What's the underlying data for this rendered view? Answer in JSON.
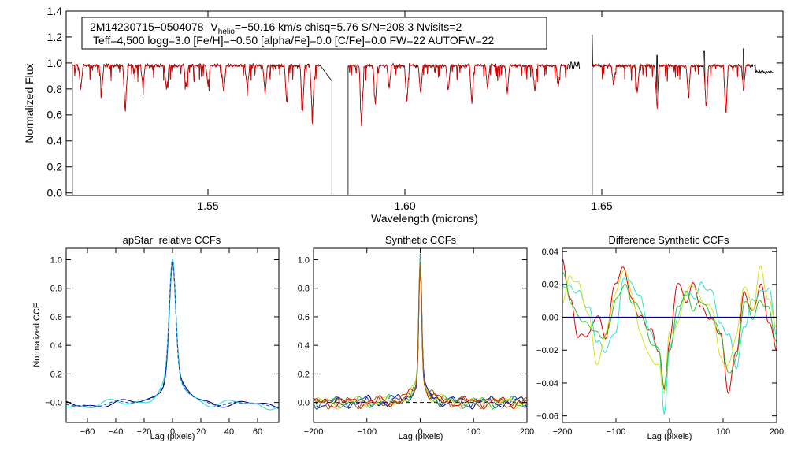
{
  "colors": {
    "observed": "#000000",
    "model": "#e00000",
    "ccf_navy": "#000080",
    "ccf_blue": "#1050c8",
    "ccf_cyan": "#30e0d0",
    "ccf_green": "#30c030",
    "ccf_yellow": "#d8e020",
    "ccf_red": "#e00000",
    "ccf_brown": "#a06010",
    "dashed": "#000000"
  },
  "annotation": {
    "line1_star": "2M14230715−0504078",
    "line1_v": "V",
    "line1_v_sub": "helio",
    "line1_rest": "=−50.16 km/s  chisq=5.76  S/N=208.3  Nvisits=2",
    "line2": "Teff=4,500 logg=3.0 [Fe/H]=−0.50 [alpha/Fe]=0.0 [C/Fe]=0.0 FW=22 AUTOFW=22"
  },
  "chart_data": [
    {
      "type": "line",
      "title": "",
      "xlabel": "Wavelength (microns)",
      "ylabel": "Normalized Flux",
      "xlim": [
        1.514,
        1.696
      ],
      "ylim": [
        -0.02,
        1.4
      ],
      "x_ticks": [
        1.55,
        1.6,
        1.65
      ],
      "x_tick_labels": [
        "1.55",
        "1.60",
        "1.65"
      ],
      "y_ticks": [
        0.0,
        0.2,
        0.4,
        0.6,
        0.8,
        1.0,
        1.2,
        1.4
      ],
      "y_tick_labels": [
        "0.0",
        "0.2",
        "0.4",
        "0.6",
        "0.8",
        "1.0",
        "1.2",
        "1.4"
      ],
      "detector_chips": [
        [
          1.5155,
          1.5815
        ],
        [
          1.5855,
          1.6445
        ],
        [
          1.6475,
          1.6935
        ]
      ],
      "continuum": 0.98,
      "strong_lines": [
        {
          "x": 1.5177,
          "depth": 0.18
        },
        {
          "x": 1.523,
          "depth": 0.2
        },
        {
          "x": 1.529,
          "depth": 0.37
        },
        {
          "x": 1.5335,
          "depth": 0.16
        },
        {
          "x": 1.5395,
          "depth": 0.2
        },
        {
          "x": 1.5445,
          "depth": 0.18
        },
        {
          "x": 1.55,
          "depth": 0.15
        },
        {
          "x": 1.554,
          "depth": 0.22
        },
        {
          "x": 1.56,
          "depth": 0.18
        },
        {
          "x": 1.5645,
          "depth": 0.22
        },
        {
          "x": 1.57,
          "depth": 0.3
        },
        {
          "x": 1.574,
          "depth": 0.38
        },
        {
          "x": 1.5765,
          "depth": 0.42
        },
        {
          "x": 1.589,
          "depth": 0.48
        },
        {
          "x": 1.5925,
          "depth": 0.3
        },
        {
          "x": 1.596,
          "depth": 0.18
        },
        {
          "x": 1.6005,
          "depth": 0.28
        },
        {
          "x": 1.604,
          "depth": 0.22
        },
        {
          "x": 1.611,
          "depth": 0.2
        },
        {
          "x": 1.617,
          "depth": 0.3
        },
        {
          "x": 1.621,
          "depth": 0.18
        },
        {
          "x": 1.626,
          "depth": 0.22
        },
        {
          "x": 1.633,
          "depth": 0.2
        },
        {
          "x": 1.639,
          "depth": 0.15
        },
        {
          "x": 1.653,
          "depth": 0.16
        },
        {
          "x": 1.659,
          "depth": 0.22
        },
        {
          "x": 1.664,
          "depth": 0.3
        },
        {
          "x": 1.672,
          "depth": 0.25
        },
        {
          "x": 1.6765,
          "depth": 0.33
        },
        {
          "x": 1.6815,
          "depth": 0.4
        },
        {
          "x": 1.686,
          "depth": 0.18
        },
        {
          "x": 1.6905,
          "depth": 0.16
        }
      ],
      "emission_spikes": [
        {
          "x": 1.6475,
          "height": 1.22
        },
        {
          "x": 1.664,
          "height": 1.06
        },
        {
          "x": 1.676,
          "height": 1.09
        },
        {
          "x": 1.686,
          "height": 1.11
        }
      ],
      "series": [
        {
          "name": "observed spectrum",
          "color": "#000000"
        },
        {
          "name": "best-fit model",
          "color": "#e00000"
        }
      ]
    },
    {
      "type": "line",
      "title": "apStar−relative CCFs",
      "xlabel": "Lag (pixels)",
      "ylabel": "Normalized CCF",
      "xlim": [
        -75,
        75
      ],
      "ylim": [
        -0.14,
        1.08
      ],
      "x_ticks": [
        -60,
        -40,
        -20,
        0,
        20,
        40,
        60
      ],
      "x_tick_labels": [
        "−60",
        "−40",
        "−20",
        "0",
        "20",
        "40",
        "60"
      ],
      "y_ticks": [
        0.0,
        0.2,
        0.4,
        0.6,
        0.8,
        1.0
      ],
      "y_tick_labels": [
        "−0.0",
        "0.2",
        "0.4",
        "0.6",
        "0.8",
        "1.0"
      ],
      "peak": {
        "x": 0,
        "y": 1.0
      },
      "baseline": -0.05,
      "series": [
        {
          "name": "visit 1",
          "color": "#000080"
        },
        {
          "name": "visit 2",
          "color": "#30e0d0"
        },
        {
          "name": "combined (dashed)",
          "color": "#1050c8"
        }
      ]
    },
    {
      "type": "line",
      "title": "Synthetic CCFs",
      "xlabel": "Lag (pixels)",
      "ylabel": "",
      "xlim": [
        -200,
        200
      ],
      "ylim": [
        -0.14,
        1.08
      ],
      "x_ticks": [
        -200,
        -100,
        0,
        100,
        200
      ],
      "x_tick_labels": [
        "−200",
        "−100",
        "0",
        "100",
        "200"
      ],
      "y_ticks": [
        0.0,
        0.2,
        0.4,
        0.6,
        0.8,
        1.0
      ],
      "y_tick_labels": [
        "0.0",
        "0.2",
        "0.4",
        "0.6",
        "0.8",
        "1.0"
      ],
      "peak": {
        "x": 0,
        "y": 1.0
      },
      "zero_line": {
        "y": 0.0,
        "style": "dashed"
      },
      "series": [
        {
          "name": "ccf 1",
          "color": "#000080"
        },
        {
          "name": "ccf 2",
          "color": "#1050c8"
        },
        {
          "name": "ccf 3",
          "color": "#30c030"
        },
        {
          "name": "ccf 4",
          "color": "#d8e020"
        },
        {
          "name": "ccf 5",
          "color": "#e00000"
        },
        {
          "name": "ccf 6",
          "color": "#a06010"
        }
      ]
    },
    {
      "type": "line",
      "title": "Difference Synthetic CCFs",
      "xlabel": "Lag (pixels)",
      "ylabel": "",
      "xlim": [
        -200,
        200
      ],
      "ylim": [
        -0.064,
        0.042
      ],
      "x_ticks": [
        -200,
        -100,
        0,
        100,
        200
      ],
      "x_tick_labels": [
        "−200",
        "−100",
        "0",
        "100",
        "200"
      ],
      "y_ticks": [
        -0.06,
        -0.04,
        -0.02,
        0.0,
        0.02,
        0.04
      ],
      "y_tick_labels": [
        "−0.06",
        "−0.04",
        "−0.02",
        "0.00",
        "0.02",
        "0.04"
      ],
      "minimum": {
        "x": -10,
        "y": -0.058
      },
      "series": [
        {
          "name": "red",
          "color": "#e00000",
          "knots": [
            [
              -200,
              0.035
            ],
            [
              -185,
              0.01
            ],
            [
              -170,
              -0.012
            ],
            [
              -150,
              -0.01
            ],
            [
              -135,
              0.002
            ],
            [
              -120,
              -0.012
            ],
            [
              -100,
              0.022
            ],
            [
              -85,
              0.03
            ],
            [
              -70,
              0.01
            ],
            [
              -55,
              0.0
            ],
            [
              -35,
              -0.008
            ],
            [
              -20,
              -0.02
            ],
            [
              -10,
              -0.044
            ],
            [
              0,
              -0.015
            ],
            [
              15,
              0.022
            ],
            [
              30,
              0.01
            ],
            [
              45,
              0.02
            ],
            [
              60,
              0.005
            ],
            [
              80,
              -0.002
            ],
            [
              95,
              -0.01
            ],
            [
              110,
              -0.045
            ],
            [
              125,
              -0.02
            ],
            [
              140,
              0.015
            ],
            [
              155,
              0.003
            ],
            [
              170,
              0.02
            ],
            [
              185,
              -0.002
            ],
            [
              200,
              -0.02
            ]
          ]
        },
        {
          "name": "cyan",
          "color": "#30e0d0",
          "knots": [
            [
              -200,
              0.02
            ],
            [
              -185,
              0.018
            ],
            [
              -170,
              0.015
            ],
            [
              -150,
              0.005
            ],
            [
              -135,
              -0.015
            ],
            [
              -120,
              -0.02
            ],
            [
              -100,
              -0.008
            ],
            [
              -85,
              0.025
            ],
            [
              -70,
              0.02
            ],
            [
              -55,
              0.012
            ],
            [
              -35,
              -0.01
            ],
            [
              -20,
              -0.02
            ],
            [
              -10,
              -0.058
            ],
            [
              0,
              -0.02
            ],
            [
              15,
              0.0
            ],
            [
              30,
              0.015
            ],
            [
              45,
              0.012
            ],
            [
              60,
              0.02
            ],
            [
              80,
              0.015
            ],
            [
              95,
              -0.005
            ],
            [
              110,
              -0.01
            ],
            [
              125,
              -0.03
            ],
            [
              140,
              -0.005
            ],
            [
              155,
              0.01
            ],
            [
              170,
              0.015
            ],
            [
              185,
              0.018
            ],
            [
              200,
              -0.01
            ]
          ]
        },
        {
          "name": "yellow",
          "color": "#d8e020",
          "knots": [
            [
              -200,
              0.01
            ],
            [
              -185,
              0.025
            ],
            [
              -170,
              0.02
            ],
            [
              -150,
              0.0
            ],
            [
              -135,
              -0.03
            ],
            [
              -120,
              -0.01
            ],
            [
              -100,
              0.015
            ],
            [
              -85,
              0.03
            ],
            [
              -70,
              0.015
            ],
            [
              -55,
              -0.01
            ],
            [
              -35,
              -0.025
            ],
            [
              -20,
              -0.03
            ],
            [
              -10,
              -0.045
            ],
            [
              0,
              -0.01
            ],
            [
              15,
              -0.005
            ],
            [
              30,
              0.015
            ],
            [
              45,
              0.02
            ],
            [
              60,
              0.01
            ],
            [
              80,
              0.005
            ],
            [
              95,
              -0.025
            ],
            [
              110,
              -0.03
            ],
            [
              125,
              -0.01
            ],
            [
              140,
              0.02
            ],
            [
              155,
              0.005
            ],
            [
              170,
              0.03
            ],
            [
              185,
              0.01
            ],
            [
              200,
              -0.005
            ]
          ]
        },
        {
          "name": "green",
          "color": "#30c030",
          "knots": [
            [
              -200,
              0.028
            ],
            [
              -185,
              0.01
            ],
            [
              -170,
              0.0
            ],
            [
              -150,
              -0.005
            ],
            [
              -135,
              -0.01
            ],
            [
              -120,
              -0.012
            ],
            [
              -100,
              0.01
            ],
            [
              -85,
              0.02
            ],
            [
              -70,
              0.01
            ],
            [
              -55,
              0.005
            ],
            [
              -35,
              -0.015
            ],
            [
              -20,
              -0.02
            ],
            [
              -10,
              -0.042
            ],
            [
              0,
              -0.02
            ],
            [
              15,
              0.005
            ],
            [
              30,
              0.015
            ],
            [
              45,
              0.005
            ],
            [
              60,
              0.01
            ],
            [
              80,
              0.0
            ],
            [
              95,
              -0.01
            ],
            [
              110,
              -0.035
            ],
            [
              125,
              -0.025
            ],
            [
              140,
              0.01
            ],
            [
              155,
              0.0
            ],
            [
              170,
              0.01
            ],
            [
              185,
              0.005
            ],
            [
              200,
              -0.015
            ]
          ]
        },
        {
          "name": "baseline",
          "color": "#000080",
          "knots": [
            [
              -200,
              0.0
            ],
            [
              200,
              0.0
            ]
          ]
        }
      ]
    }
  ]
}
